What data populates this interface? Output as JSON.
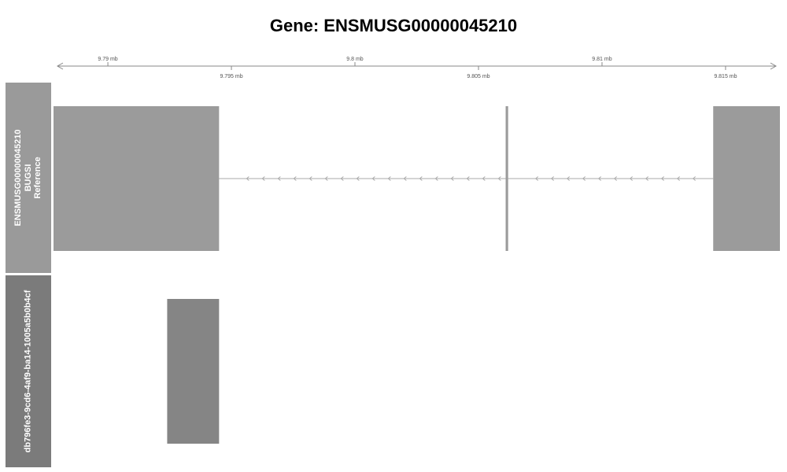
{
  "title": "Gene: ENSMUSG00000045210",
  "axis": {
    "upper_ticks": [
      {
        "value": 9.79,
        "label": "9.79 mb"
      },
      {
        "value": 9.8,
        "label": "9.8 mb"
      },
      {
        "value": 9.81,
        "label": "9.81 mb"
      }
    ],
    "lower_ticks": [
      {
        "value": 9.795,
        "label": "9.795 mb"
      },
      {
        "value": 9.805,
        "label": "9.805 mb"
      },
      {
        "value": 9.815,
        "label": "9.815 mb"
      }
    ],
    "range_mb": [
      9.7878,
      9.8172
    ]
  },
  "tracks": [
    {
      "lines": [
        "ENSMUSG00000045210",
        "BUGSI",
        "Reference"
      ],
      "panel_color": "#9a9a9a",
      "feature_color": "#9b9b9b",
      "strand": "minus",
      "exons": [
        {
          "start": 9.7878,
          "end": 9.7945
        },
        {
          "start": 9.8061,
          "end": 9.8062
        },
        {
          "start": 9.8145,
          "end": 9.8172
        }
      ]
    },
    {
      "lines": [
        "db796fe3-9cd6-4af9-ba14-1005a5b0b4cf"
      ],
      "panel_color": "#7b7b7b",
      "feature_color": "#858585",
      "exons": [
        {
          "start": 9.7924,
          "end": 9.7945
        }
      ]
    }
  ]
}
